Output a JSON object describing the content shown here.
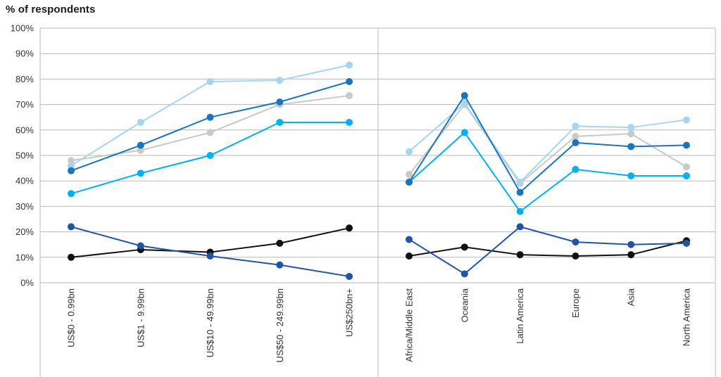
{
  "title": "% of respondents",
  "colors": {
    "light_blue": "#a5d5f0",
    "blue": "#1b75bc",
    "cyan": "#00b0f0",
    "gray": "#c9c9c9",
    "navy": "#2155a4",
    "black": "#111111",
    "gridline": "#b9b9b9",
    "tick_text": "#333333",
    "title_text": "#1a1a1a"
  },
  "chart_data": {
    "type": "line",
    "title": "% of respondents",
    "ylim": [
      0,
      100
    ],
    "ytick_step": 10,
    "ytick_labels": [
      "0%",
      "10%",
      "20%",
      "30%",
      "40%",
      "50%",
      "60%",
      "70%",
      "80%",
      "90%",
      "100%"
    ],
    "grid": true,
    "marker": "circle",
    "panels": [
      {
        "name": "by-company-size",
        "categories": [
          "US$0 - 0.99bn",
          "US$1 - 9.99bn",
          "US$10 - 49.99bn",
          "US$50 - 249.99bn",
          "US$250bn+"
        ],
        "series": [
          {
            "name": "gray-series",
            "color_key": "gray",
            "values": [
              48,
              52,
              59,
              70,
              73.5
            ]
          },
          {
            "name": "light-blue-series",
            "color_key": "light_blue",
            "values": [
              46,
              63,
              79,
              79.5,
              85.5
            ]
          },
          {
            "name": "cyan-series",
            "color_key": "cyan",
            "values": [
              35,
              43,
              50,
              63,
              63
            ]
          },
          {
            "name": "blue-series",
            "color_key": "blue",
            "values": [
              44,
              54,
              65,
              71,
              79
            ]
          },
          {
            "name": "black-series",
            "color_key": "black",
            "values": [
              10,
              13,
              12,
              15.5,
              21.5
            ]
          },
          {
            "name": "navy-series",
            "color_key": "navy",
            "values": [
              22,
              14.5,
              10.5,
              7,
              2.5
            ]
          }
        ]
      },
      {
        "name": "by-region",
        "categories": [
          "Africa/Middle East",
          "Oceania",
          "Latin America",
          "Europe",
          "Asia",
          "North America"
        ],
        "series": [
          {
            "name": "gray-series",
            "color_key": "gray",
            "values": [
              42.5,
              70,
              39,
              57.5,
              58.5,
              45.5
            ]
          },
          {
            "name": "light-blue-series",
            "color_key": "light_blue",
            "values": [
              51.5,
              70.5,
              39.5,
              61.5,
              61,
              64
            ]
          },
          {
            "name": "cyan-series",
            "color_key": "cyan",
            "values": [
              39.5,
              59,
              28,
              44.5,
              42,
              42
            ]
          },
          {
            "name": "blue-series",
            "color_key": "blue",
            "values": [
              39.5,
              73.5,
              35.5,
              55,
              53.5,
              54
            ]
          },
          {
            "name": "black-series",
            "color_key": "black",
            "values": [
              10.5,
              14,
              11,
              10.5,
              11,
              16.5
            ]
          },
          {
            "name": "navy-series",
            "color_key": "navy",
            "values": [
              17,
              3.5,
              22,
              16,
              15,
              15.5
            ]
          }
        ]
      }
    ]
  }
}
